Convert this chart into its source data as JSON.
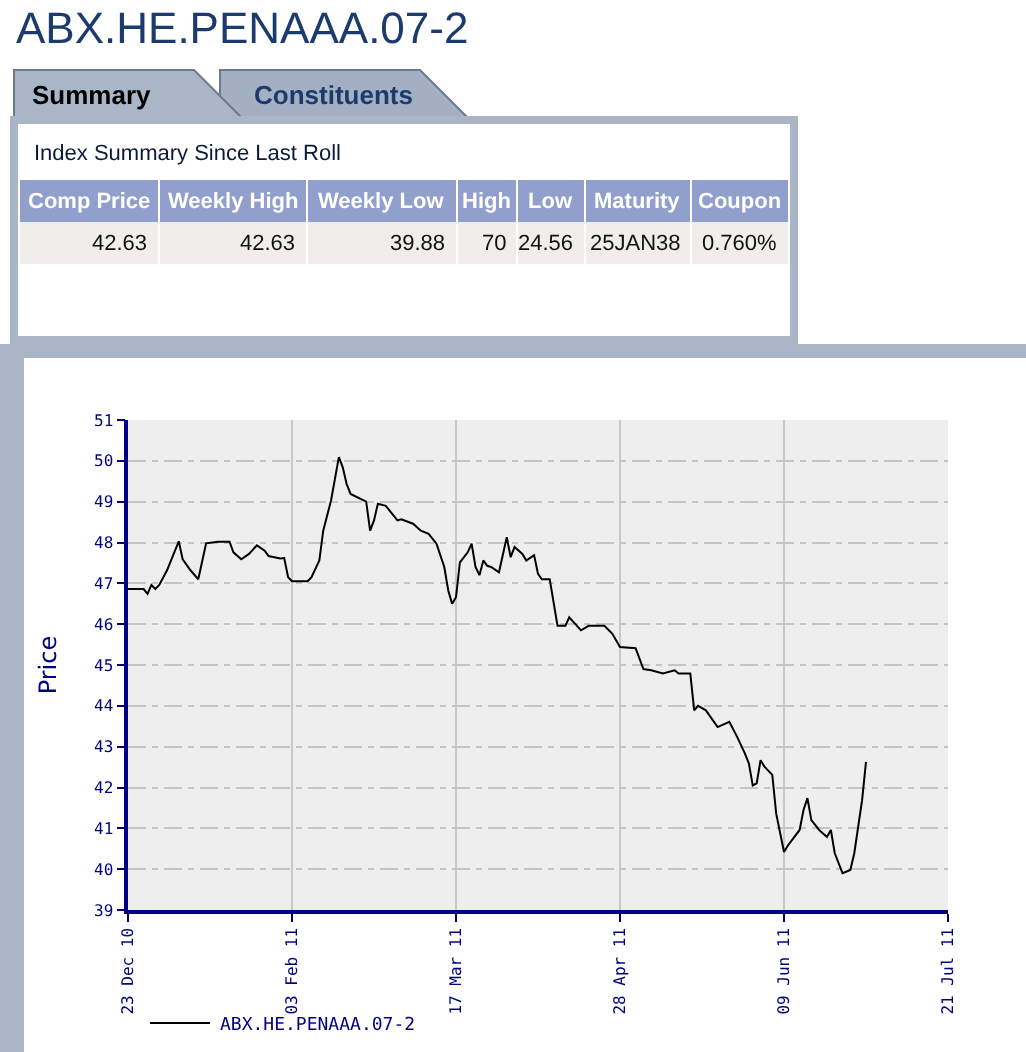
{
  "chart_data": {
    "type": "line",
    "title": "ABX.HE.PENAAA.07-2",
    "ylabel": "Price",
    "annotations": [
      "Summary",
      "Constituents",
      "Index Summary Since Last Roll",
      "Comp Price",
      "Weekly High",
      "Weekly Low",
      "High",
      "Low",
      "Maturity",
      "Coupon",
      "42.63",
      "42.63",
      "39.88",
      "70",
      "24.56",
      "25JAN38",
      "0.760%"
    ],
    "x": [
      "2010-12-23",
      "2010-12-27",
      "2010-12-28",
      "2010-12-29",
      "2010-12-30",
      "2010-12-31",
      "2011-01-02",
      "2011-01-05",
      "2011-01-06",
      "2011-01-08",
      "2011-01-10",
      "2011-01-12",
      "2011-01-15",
      "2011-01-18",
      "2011-01-19",
      "2011-01-21",
      "2011-01-23",
      "2011-01-25",
      "2011-01-27",
      "2011-01-28",
      "2011-01-31",
      "2011-02-01",
      "2011-02-02",
      "2011-02-03",
      "2011-02-07",
      "2011-02-08",
      "2011-02-10",
      "2011-02-11",
      "2011-02-13",
      "2011-02-15",
      "2011-02-16",
      "2011-02-17",
      "2011-02-18",
      "2011-02-22",
      "2011-02-23",
      "2011-02-24",
      "2011-02-25",
      "2011-02-27",
      "2011-02-28",
      "2011-03-02",
      "2011-03-03",
      "2011-03-06",
      "2011-03-08",
      "2011-03-10",
      "2011-03-12",
      "2011-03-14",
      "2011-03-15",
      "2011-03-16",
      "2011-03-17",
      "2011-03-18",
      "2011-03-20",
      "2011-03-21",
      "2011-03-22",
      "2011-03-23",
      "2011-03-24",
      "2011-03-25",
      "2011-03-26",
      "2011-03-28",
      "2011-03-30",
      "2011-03-31",
      "2011-04-01",
      "2011-04-03",
      "2011-04-04",
      "2011-04-06",
      "2011-04-07",
      "2011-04-08",
      "2011-04-10",
      "2011-04-12",
      "2011-04-14",
      "2011-04-15",
      "2011-04-18",
      "2011-04-20",
      "2011-04-24",
      "2011-04-26",
      "2011-04-28",
      "2011-05-02",
      "2011-05-04",
      "2011-05-06",
      "2011-05-09",
      "2011-05-12",
      "2011-05-13",
      "2011-05-16",
      "2011-05-17",
      "2011-05-18",
      "2011-05-20",
      "2011-05-23",
      "2011-05-26",
      "2011-05-28",
      "2011-05-30",
      "2011-05-31",
      "2011-06-01",
      "2011-06-02",
      "2011-06-03",
      "2011-06-04",
      "2011-06-06",
      "2011-06-07",
      "2011-06-09",
      "2011-06-10",
      "2011-06-13",
      "2011-06-14",
      "2011-06-15",
      "2011-06-16",
      "2011-06-18",
      "2011-06-20",
      "2011-06-21",
      "2011-06-22",
      "2011-06-24",
      "2011-06-26",
      "2011-06-27",
      "2011-06-29",
      "2011-06-30"
    ],
    "series": [
      {
        "name": "ABX.HE.PENAAA.07-2",
        "color": "#000000",
        "values": [
          46.86,
          46.86,
          46.74,
          46.96,
          46.86,
          46.96,
          47.32,
          48.03,
          47.59,
          47.32,
          47.1,
          47.98,
          48.02,
          48.02,
          47.76,
          47.59,
          47.72,
          47.93,
          47.8,
          47.67,
          47.61,
          47.62,
          47.15,
          47.05,
          47.05,
          47.15,
          47.56,
          48.29,
          49.03,
          50.09,
          49.84,
          49.43,
          49.19,
          49.0,
          48.29,
          48.54,
          48.95,
          48.9,
          48.78,
          48.54,
          48.57,
          48.46,
          48.29,
          48.21,
          47.97,
          47.4,
          46.83,
          46.5,
          46.66,
          47.51,
          47.76,
          47.97,
          47.4,
          47.2,
          47.56,
          47.43,
          47.4,
          47.27,
          48.13,
          47.64,
          47.89,
          47.72,
          47.56,
          47.69,
          47.23,
          47.1,
          47.1,
          45.96,
          45.96,
          46.17,
          45.85,
          45.96,
          45.96,
          45.77,
          45.44,
          45.41,
          44.9,
          44.87,
          44.79,
          44.87,
          44.79,
          44.79,
          43.89,
          44.0,
          43.89,
          43.48,
          43.61,
          43.24,
          42.83,
          42.59,
          42.05,
          42.1,
          42.67,
          42.51,
          42.31,
          41.36,
          40.42,
          40.58,
          40.96,
          41.45,
          41.74,
          41.2,
          40.96,
          40.79,
          40.96,
          40.39,
          39.9,
          39.98,
          40.39,
          41.69,
          42.63
        ]
      }
    ],
    "xlim": [
      "2010-12-23",
      "2011-07-21"
    ],
    "xticks": [
      {
        "value": "2010-12-23",
        "label": "23 Dec 10"
      },
      {
        "value": "2011-02-03",
        "label": "03 Feb 11"
      },
      {
        "value": "2011-03-17",
        "label": "17 Mar 11"
      },
      {
        "value": "2011-04-28",
        "label": "28 Apr 11"
      },
      {
        "value": "2011-06-09",
        "label": "09 Jun 11"
      },
      {
        "value": "2011-07-21",
        "label": "21 Jul 11"
      }
    ],
    "ylim": [
      39,
      51
    ],
    "yticks": [
      39,
      40,
      41,
      42,
      43,
      44,
      45,
      46,
      47,
      48,
      49,
      50,
      51
    ],
    "grid": true,
    "legend": "bottom left",
    "line_style": "solid"
  }
}
